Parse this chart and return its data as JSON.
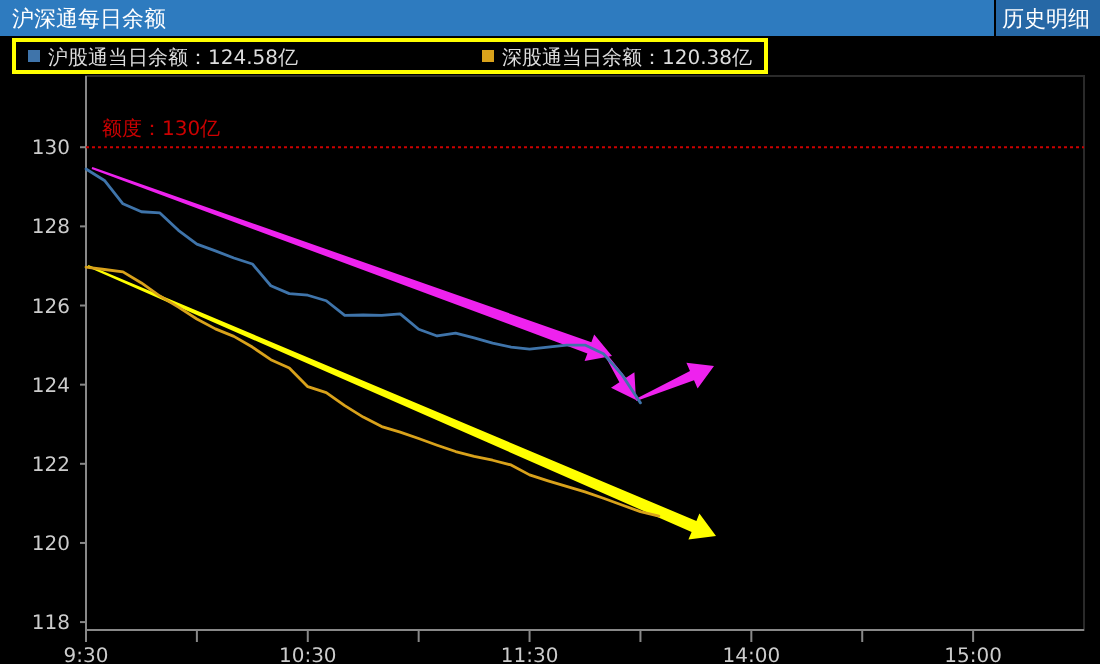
{
  "chart_data": {
    "type": "line",
    "title": "沪深通每日余额",
    "annotations": [
      "历史明细"
    ],
    "categories": [
      "9:30",
      null,
      null,
      null,
      null,
      null,
      null,
      null,
      null,
      null,
      null,
      null,
      "10:30",
      null,
      null,
      null,
      null,
      null,
      null,
      null,
      null,
      null,
      null,
      null,
      "11:30",
      null,
      null,
      null,
      null,
      null,
      null,
      null,
      null,
      null,
      null,
      null,
      "14:00",
      null,
      null,
      null,
      null,
      null,
      null,
      null,
      null,
      null,
      null,
      null,
      "15:00",
      null,
      null,
      null,
      null,
      null,
      null
    ],
    "series": [
      {
        "name": "沪股通当日余额：124.58亿",
        "color": "#3f74aa",
        "values": [
          129.45,
          129.16,
          128.57,
          128.37,
          128.34,
          127.9,
          127.55,
          127.38,
          127.2,
          127.05,
          126.5,
          126.3,
          126.26,
          126.12,
          125.75,
          125.76,
          125.75,
          125.79,
          125.4,
          125.23,
          125.3,
          125.18,
          125.05,
          124.95,
          124.9,
          124.95,
          125.0,
          125.0,
          124.78,
          124.25,
          123.54,
          null,
          null,
          null,
          null,
          null,
          null,
          null,
          null,
          null,
          null,
          null,
          null,
          null,
          null,
          null,
          null,
          null,
          null,
          null,
          null,
          null,
          null,
          null,
          null
        ]
      },
      {
        "name": "深股通当日余额：120.38亿",
        "color": "#d9a21b",
        "values": [
          126.97,
          126.91,
          126.85,
          126.57,
          126.24,
          125.96,
          125.66,
          125.41,
          125.22,
          124.95,
          124.63,
          124.42,
          123.95,
          123.8,
          123.47,
          123.18,
          122.94,
          122.8,
          122.64,
          122.47,
          122.31,
          122.19,
          122.09,
          121.97,
          121.72,
          121.57,
          121.43,
          121.29,
          121.13,
          120.96,
          120.79,
          120.68,
          null,
          null,
          null,
          null,
          null,
          null,
          null,
          null,
          null,
          null,
          null,
          null,
          null,
          null,
          null,
          null,
          null,
          null,
          null,
          null,
          null,
          null,
          null
        ]
      }
    ],
    "ylim": [
      117.8,
      131.8
    ],
    "yticks": [
      118,
      120,
      122,
      124,
      126,
      128,
      130
    ],
    "ref_lines": [
      {
        "axis": "y",
        "value": 130,
        "label": "额度：130亿",
        "color": "#cc0000",
        "line_style": "dotted"
      }
    ],
    "grid": false,
    "legend": "top",
    "marker": "none",
    "line_style": "solid"
  }
}
